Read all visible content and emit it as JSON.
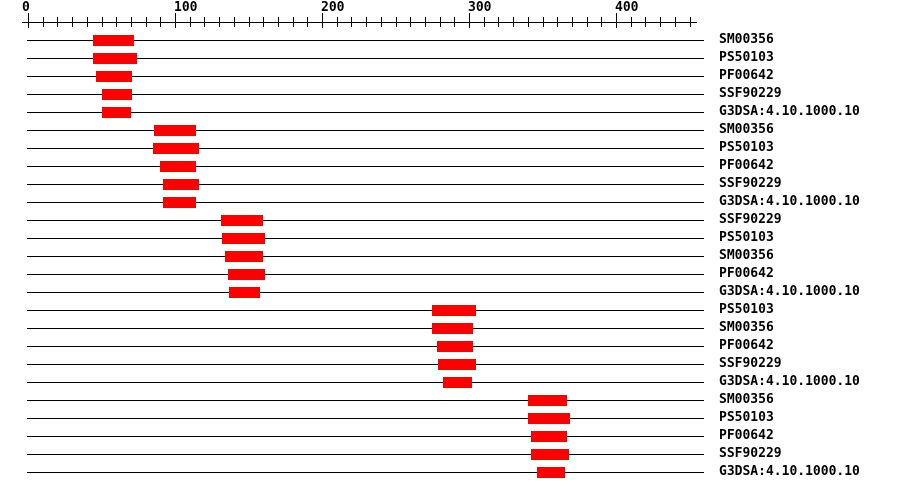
{
  "colors": {
    "background": "#ffffff",
    "line": "#000000",
    "text": "#000000",
    "bar": "#ff0000"
  },
  "chart_data": {
    "type": "bar",
    "subtype": "horizontal-span-domain-matches",
    "title": "",
    "xlabel": "",
    "ylabel": "",
    "x_axis": {
      "min": 0,
      "max": 459,
      "major_ticks": [
        0,
        100,
        200,
        300,
        400
      ],
      "major_tick_labels": [
        "0",
        "100",
        "200",
        "300",
        "400"
      ],
      "minor_tick_interval": 10,
      "minor_tick_max": 450,
      "grid": false
    },
    "legend": null,
    "rows": [
      {
        "label": "SM00356",
        "start": 44,
        "end": 72
      },
      {
        "label": "PS50103",
        "start": 44,
        "end": 74
      },
      {
        "label": "PF00642",
        "start": 46,
        "end": 71
      },
      {
        "label": "SSF90229",
        "start": 50,
        "end": 71
      },
      {
        "label": "G3DSA:4.10.1000.10",
        "start": 50,
        "end": 70
      },
      {
        "label": "SM00356",
        "start": 86,
        "end": 114
      },
      {
        "label": "PS50103",
        "start": 85,
        "end": 116
      },
      {
        "label": "PF00642",
        "start": 90,
        "end": 114
      },
      {
        "label": "SSF90229",
        "start": 92,
        "end": 116
      },
      {
        "label": "G3DSA:4.10.1000.10",
        "start": 92,
        "end": 114
      },
      {
        "label": "SSF90229",
        "start": 131,
        "end": 160
      },
      {
        "label": "PS50103",
        "start": 132,
        "end": 161
      },
      {
        "label": "SM00356",
        "start": 134,
        "end": 160
      },
      {
        "label": "PF00642",
        "start": 136,
        "end": 161
      },
      {
        "label": "G3DSA:4.10.1000.10",
        "start": 137,
        "end": 158
      },
      {
        "label": "PS50103",
        "start": 275,
        "end": 305
      },
      {
        "label": "SM00356",
        "start": 275,
        "end": 303
      },
      {
        "label": "PF00642",
        "start": 278,
        "end": 303
      },
      {
        "label": "SSF90229",
        "start": 279,
        "end": 305
      },
      {
        "label": "G3DSA:4.10.1000.10",
        "start": 282,
        "end": 302
      },
      {
        "label": "SM00356",
        "start": 340,
        "end": 367
      },
      {
        "label": "PS50103",
        "start": 340,
        "end": 369
      },
      {
        "label": "PF00642",
        "start": 342,
        "end": 367
      },
      {
        "label": "SSF90229",
        "start": 342,
        "end": 368
      },
      {
        "label": "G3DSA:4.10.1000.10",
        "start": 346,
        "end": 365
      }
    ]
  }
}
